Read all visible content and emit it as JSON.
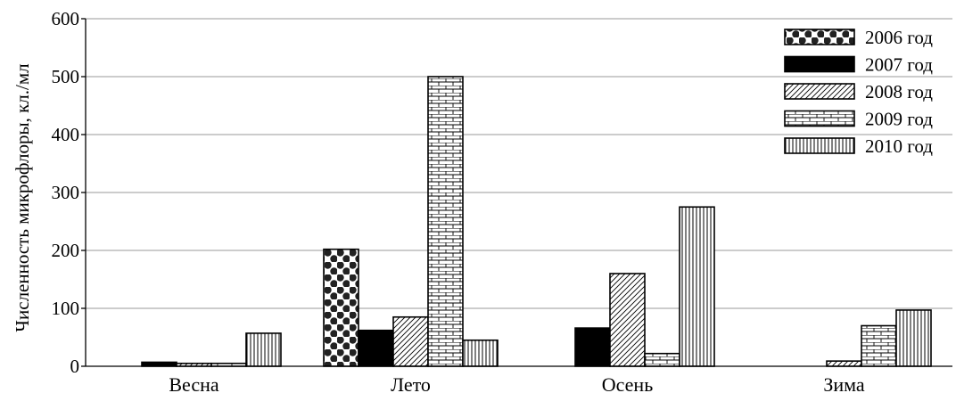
{
  "chart_data": {
    "type": "bar",
    "title": "",
    "xlabel": "",
    "ylabel": "Численность микрофлоры, кл./мл",
    "categories": [
      "Весна",
      "Лето",
      "Осень",
      "Зима"
    ],
    "ylim": [
      0,
      600
    ],
    "yticks": [
      0,
      100,
      200,
      300,
      400,
      500,
      600
    ],
    "grid": "horizontal",
    "legend_position": "top-right",
    "series": [
      {
        "name": "2006 год",
        "pattern": "dots",
        "values": [
          0,
          202,
          0,
          0
        ]
      },
      {
        "name": "2007 год",
        "pattern": "solid",
        "values": [
          7,
          62,
          66,
          0
        ]
      },
      {
        "name": "2008 год",
        "pattern": "diagonal",
        "values": [
          5,
          85,
          160,
          9
        ]
      },
      {
        "name": "2009 год",
        "pattern": "brick",
        "values": [
          5,
          500,
          22,
          70
        ]
      },
      {
        "name": "2010 год",
        "pattern": "vertical",
        "values": [
          57,
          45,
          275,
          97
        ]
      }
    ]
  }
}
